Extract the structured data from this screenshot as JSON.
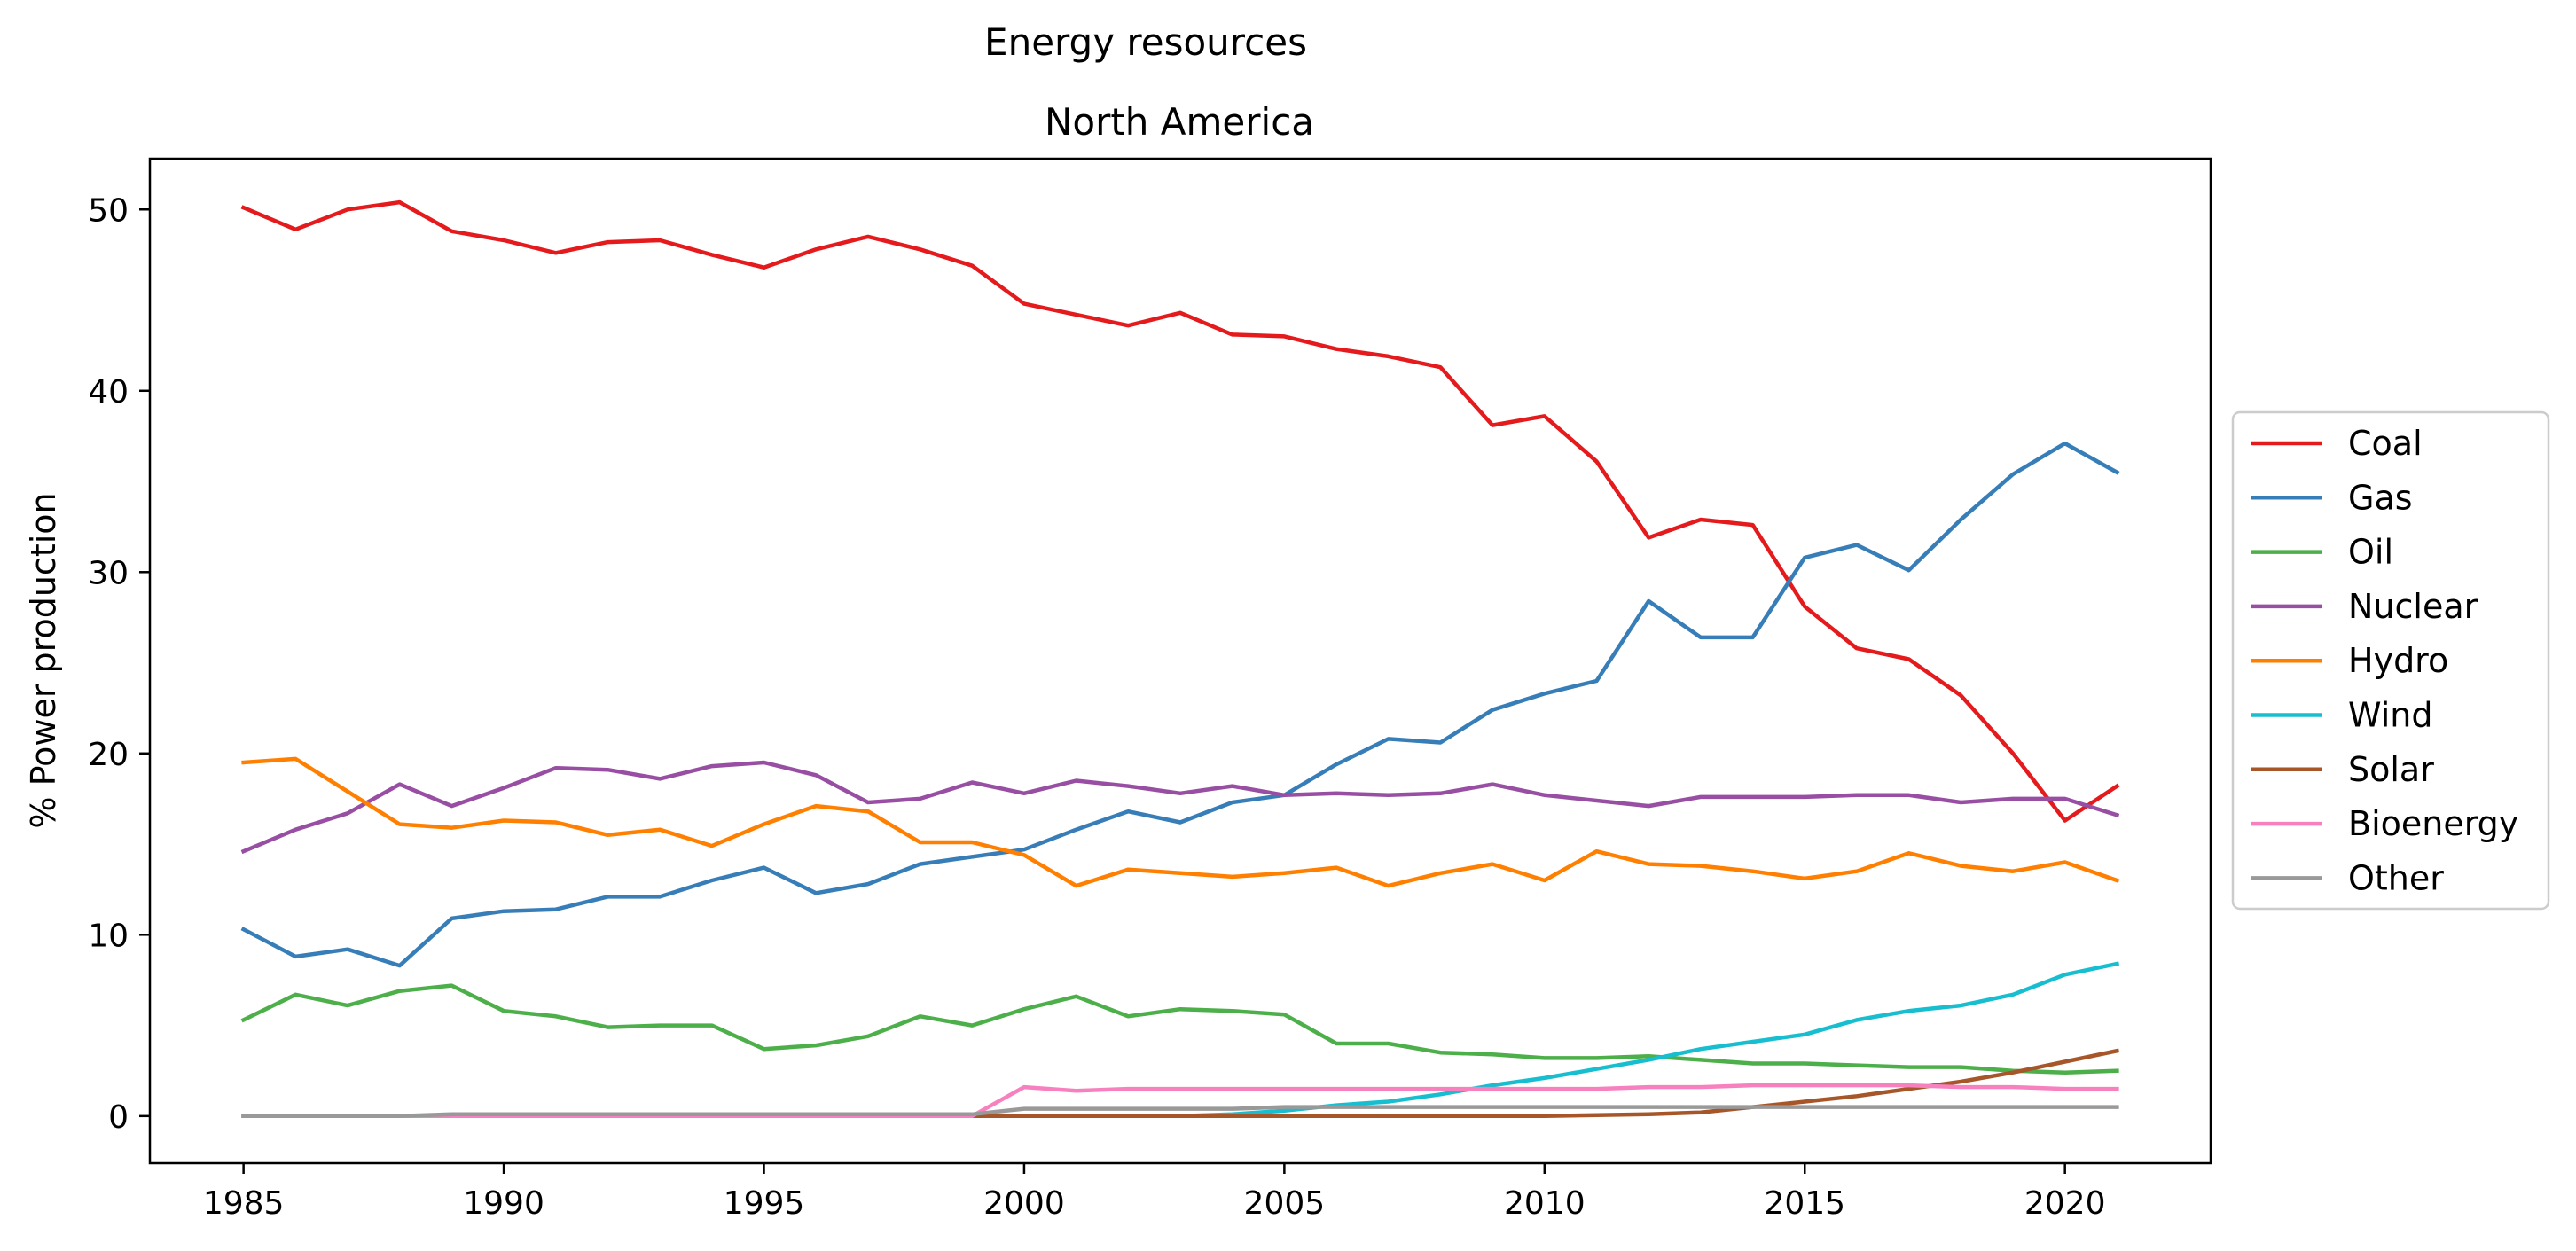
{
  "chart_data": {
    "type": "line",
    "suptitle": "Energy resources",
    "title": "North America",
    "xlabel": "",
    "ylabel": "% Power production",
    "xlim": [
      1983.2,
      2022.8
    ],
    "ylim": [
      -2.6,
      52.8
    ],
    "xticks": [
      1985,
      1990,
      1995,
      2000,
      2005,
      2010,
      2015,
      2020
    ],
    "yticks": [
      0,
      10,
      20,
      30,
      40,
      50
    ],
    "grid": false,
    "legend_position": "outside-right",
    "x": [
      1985,
      1986,
      1987,
      1988,
      1989,
      1990,
      1991,
      1992,
      1993,
      1994,
      1995,
      1996,
      1997,
      1998,
      1999,
      2000,
      2001,
      2002,
      2003,
      2004,
      2005,
      2006,
      2007,
      2008,
      2009,
      2010,
      2011,
      2012,
      2013,
      2014,
      2015,
      2016,
      2017,
      2018,
      2019,
      2020,
      2021
    ],
    "series": [
      {
        "name": "Coal",
        "color": "#e41a1c",
        "values": [
          50.1,
          48.9,
          50.0,
          50.4,
          48.8,
          48.3,
          47.6,
          48.2,
          48.3,
          47.5,
          46.8,
          47.8,
          48.5,
          47.8,
          46.9,
          44.8,
          44.2,
          43.6,
          44.3,
          43.1,
          43.0,
          42.3,
          41.9,
          41.3,
          38.1,
          38.6,
          36.1,
          31.9,
          32.9,
          32.6,
          28.1,
          25.8,
          25.2,
          23.2,
          20.0,
          16.3,
          18.2
        ]
      },
      {
        "name": "Gas",
        "color": "#377eb8",
        "values": [
          10.3,
          8.8,
          9.2,
          8.3,
          10.9,
          11.3,
          11.4,
          12.1,
          12.1,
          13.0,
          13.7,
          12.3,
          12.8,
          13.9,
          14.3,
          14.7,
          15.8,
          16.8,
          16.2,
          17.3,
          17.7,
          19.4,
          20.8,
          20.6,
          22.4,
          23.3,
          24.0,
          28.4,
          26.4,
          26.4,
          30.8,
          31.5,
          30.1,
          32.9,
          35.4,
          37.1,
          35.5
        ]
      },
      {
        "name": "Oil",
        "color": "#4daf4a",
        "values": [
          5.3,
          6.7,
          6.1,
          6.9,
          7.2,
          5.8,
          5.5,
          4.9,
          5.0,
          5.0,
          3.7,
          3.9,
          4.4,
          5.5,
          5.0,
          5.9,
          6.6,
          5.5,
          5.9,
          5.8,
          5.6,
          4.0,
          4.0,
          3.5,
          3.4,
          3.2,
          3.2,
          3.3,
          3.1,
          2.9,
          2.9,
          2.8,
          2.7,
          2.7,
          2.5,
          2.4,
          2.5
        ]
      },
      {
        "name": "Nuclear",
        "color": "#984ea3",
        "values": [
          14.6,
          15.8,
          16.7,
          18.3,
          17.1,
          18.1,
          19.2,
          19.1,
          18.6,
          19.3,
          19.5,
          18.8,
          17.3,
          17.5,
          18.4,
          17.8,
          18.5,
          18.2,
          17.8,
          18.2,
          17.7,
          17.8,
          17.7,
          17.8,
          18.3,
          17.7,
          17.4,
          17.1,
          17.6,
          17.6,
          17.6,
          17.7,
          17.7,
          17.3,
          17.5,
          17.5,
          16.6
        ]
      },
      {
        "name": "Hydro",
        "color": "#ff7f00",
        "values": [
          19.5,
          19.7,
          17.9,
          16.1,
          15.9,
          16.3,
          16.2,
          15.5,
          15.8,
          14.9,
          16.1,
          17.1,
          16.8,
          15.1,
          15.1,
          14.4,
          12.7,
          13.6,
          13.4,
          13.2,
          13.4,
          13.7,
          12.7,
          13.4,
          13.9,
          13.0,
          14.6,
          13.9,
          13.8,
          13.5,
          13.1,
          13.5,
          14.5,
          13.8,
          13.5,
          14.0,
          13.0
        ]
      },
      {
        "name": "Wind",
        "color": "#17becf",
        "values": [
          0,
          0,
          0,
          0,
          0,
          0,
          0,
          0,
          0,
          0,
          0,
          0,
          0,
          0,
          0,
          0,
          0,
          0,
          0,
          0.1,
          0.3,
          0.6,
          0.8,
          1.2,
          1.7,
          2.1,
          2.6,
          3.1,
          3.7,
          4.1,
          4.5,
          5.3,
          5.8,
          6.1,
          6.7,
          7.8,
          8.4
        ]
      },
      {
        "name": "Solar",
        "color": "#a65628",
        "values": [
          0,
          0,
          0,
          0,
          0,
          0,
          0,
          0,
          0,
          0,
          0,
          0,
          0,
          0,
          0,
          0,
          0,
          0,
          0,
          0,
          0,
          0,
          0,
          0,
          0,
          0,
          0.05,
          0.1,
          0.2,
          0.5,
          0.8,
          1.1,
          1.5,
          1.9,
          2.4,
          3.0,
          3.6
        ]
      },
      {
        "name": "Bioenergy",
        "color": "#f781bf",
        "values": [
          0,
          0,
          0,
          0,
          0,
          0,
          0,
          0,
          0,
          0,
          0,
          0,
          0,
          0,
          0,
          1.6,
          1.4,
          1.5,
          1.5,
          1.5,
          1.5,
          1.5,
          1.5,
          1.5,
          1.5,
          1.5,
          1.5,
          1.6,
          1.6,
          1.7,
          1.7,
          1.7,
          1.7,
          1.6,
          1.6,
          1.5,
          1.5
        ]
      },
      {
        "name": "Other",
        "color": "#999999",
        "values": [
          0,
          0,
          0,
          0,
          0.1,
          0.1,
          0.1,
          0.1,
          0.1,
          0.1,
          0.1,
          0.1,
          0.1,
          0.1,
          0.1,
          0.4,
          0.4,
          0.4,
          0.4,
          0.4,
          0.5,
          0.5,
          0.5,
          0.5,
          0.5,
          0.5,
          0.5,
          0.5,
          0.5,
          0.5,
          0.5,
          0.5,
          0.5,
          0.5,
          0.5,
          0.5,
          0.5
        ]
      }
    ]
  }
}
